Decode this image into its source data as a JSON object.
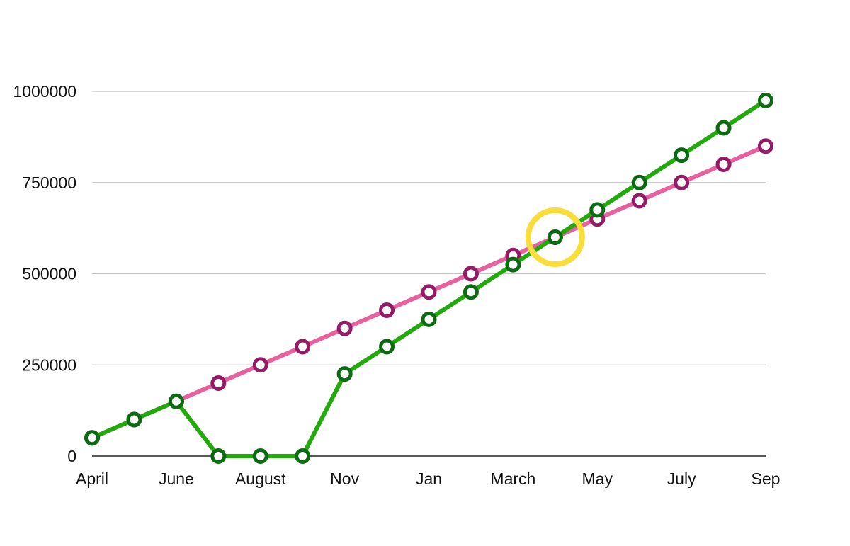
{
  "chart_data": {
    "type": "line",
    "title": "",
    "xlabel": "",
    "ylabel": "",
    "x_tick_labels": [
      "April",
      "June",
      "August",
      "Nov",
      "Jan",
      "March",
      "May",
      "July",
      "Sep"
    ],
    "y_ticks": [
      0,
      250000,
      500000,
      750000,
      1000000
    ],
    "y_tick_labels": [
      "0",
      "250000",
      "500000",
      "750000",
      "1000000"
    ],
    "ylim": [
      0,
      1000000
    ],
    "grid": true,
    "legend": "none",
    "series": [
      {
        "color": "#e8609e",
        "marker_color": "#941c66",
        "values": [
          50000,
          100000,
          150000,
          200000,
          250000,
          300000,
          350000,
          400000,
          450000,
          500000,
          550000,
          600000,
          650000,
          700000,
          750000,
          800000,
          850000
        ]
      },
      {
        "color": "#22aa0c",
        "marker_color": "#0c6a12",
        "values": [
          50000,
          100000,
          150000,
          0,
          0,
          0,
          225000,
          300000,
          375000,
          450000,
          525000,
          600000,
          675000,
          750000,
          825000,
          900000,
          975000
        ]
      }
    ],
    "highlight": {
      "point_index": 11,
      "color": "#f9dd3a"
    }
  }
}
